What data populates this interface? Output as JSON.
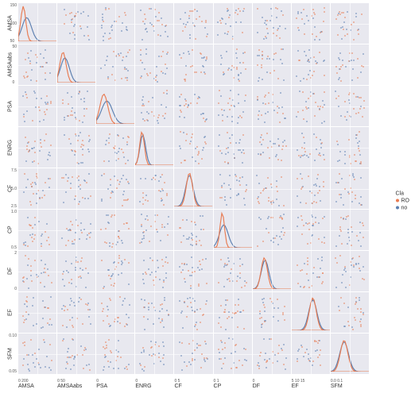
{
  "variables": [
    "AMSA",
    "AMSAabs",
    "PSA",
    "ENRG",
    "CF",
    "CP",
    "DF",
    "EF",
    "SFM"
  ],
  "xticks": [
    "0    200",
    "0   50",
    "0",
    "0",
    "0   5",
    "0    1",
    "0",
    "5 10 15",
    "0.0  0.1"
  ],
  "yticks": [
    [
      "150",
      "100",
      "50"
    ],
    [
      "50",
      "0"
    ],
    [
      ""
    ],
    [
      ""
    ],
    [
      "7.5",
      "5.0",
      "2.5"
    ],
    [
      "1.0",
      "0.5"
    ],
    [
      "2",
      "0"
    ],
    [
      ""
    ],
    [
      "0.10",
      "0.05"
    ]
  ],
  "class_labels": [
    "RO",
    "no"
  ],
  "colors": {
    "bg_cell": "#e8e8ef",
    "grid": "#ffffff",
    "series_a": "#e87b52",
    "series_b": "#5b7fb0",
    "text": "#333333"
  },
  "legend_title": "Cla",
  "kde_shapes": [
    {
      "peak_x": 0.18,
      "peak_h": 0.85,
      "width": 0.22,
      "color_key": "series_a"
    },
    {
      "peak_x": 0.25,
      "peak_h": 0.65,
      "width": 0.3,
      "color_key": "series_b"
    }
  ],
  "kde_variants": {
    "AMSA": {
      "a": {
        "px": 0.13,
        "ph": 0.92,
        "w": 0.16
      },
      "b": {
        "px": 0.22,
        "ph": 0.62,
        "w": 0.3
      }
    },
    "AMSAabs": {
      "a": {
        "px": 0.15,
        "ph": 0.8,
        "w": 0.2
      },
      "b": {
        "px": 0.2,
        "ph": 0.65,
        "w": 0.28
      }
    },
    "PSA": {
      "a": {
        "px": 0.2,
        "ph": 0.78,
        "w": 0.25
      },
      "b": {
        "px": 0.28,
        "ph": 0.6,
        "w": 0.35
      }
    },
    "ENRG": {
      "a": {
        "px": 0.18,
        "ph": 0.88,
        "w": 0.15
      },
      "b": {
        "px": 0.2,
        "ph": 0.8,
        "w": 0.18
      }
    },
    "CF": {
      "a": {
        "px": 0.4,
        "ph": 0.88,
        "w": 0.2
      },
      "b": {
        "px": 0.4,
        "ph": 0.82,
        "w": 0.24
      }
    },
    "CP": {
      "a": {
        "px": 0.22,
        "ph": 0.92,
        "w": 0.14
      },
      "b": {
        "px": 0.26,
        "ph": 0.6,
        "w": 0.28
      }
    },
    "DF": {
      "a": {
        "px": 0.3,
        "ph": 0.82,
        "w": 0.2
      },
      "b": {
        "px": 0.32,
        "ph": 0.76,
        "w": 0.24
      }
    },
    "EF": {
      "a": {
        "px": 0.55,
        "ph": 0.85,
        "w": 0.22
      },
      "b": {
        "px": 0.55,
        "ph": 0.8,
        "w": 0.26
      }
    },
    "SFM": {
      "a": {
        "px": 0.35,
        "ph": 0.82,
        "w": 0.24
      },
      "b": {
        "px": 0.35,
        "ph": 0.78,
        "w": 0.28
      }
    }
  },
  "scatter_points_per_cell": 28,
  "scatter_seed": 7
}
